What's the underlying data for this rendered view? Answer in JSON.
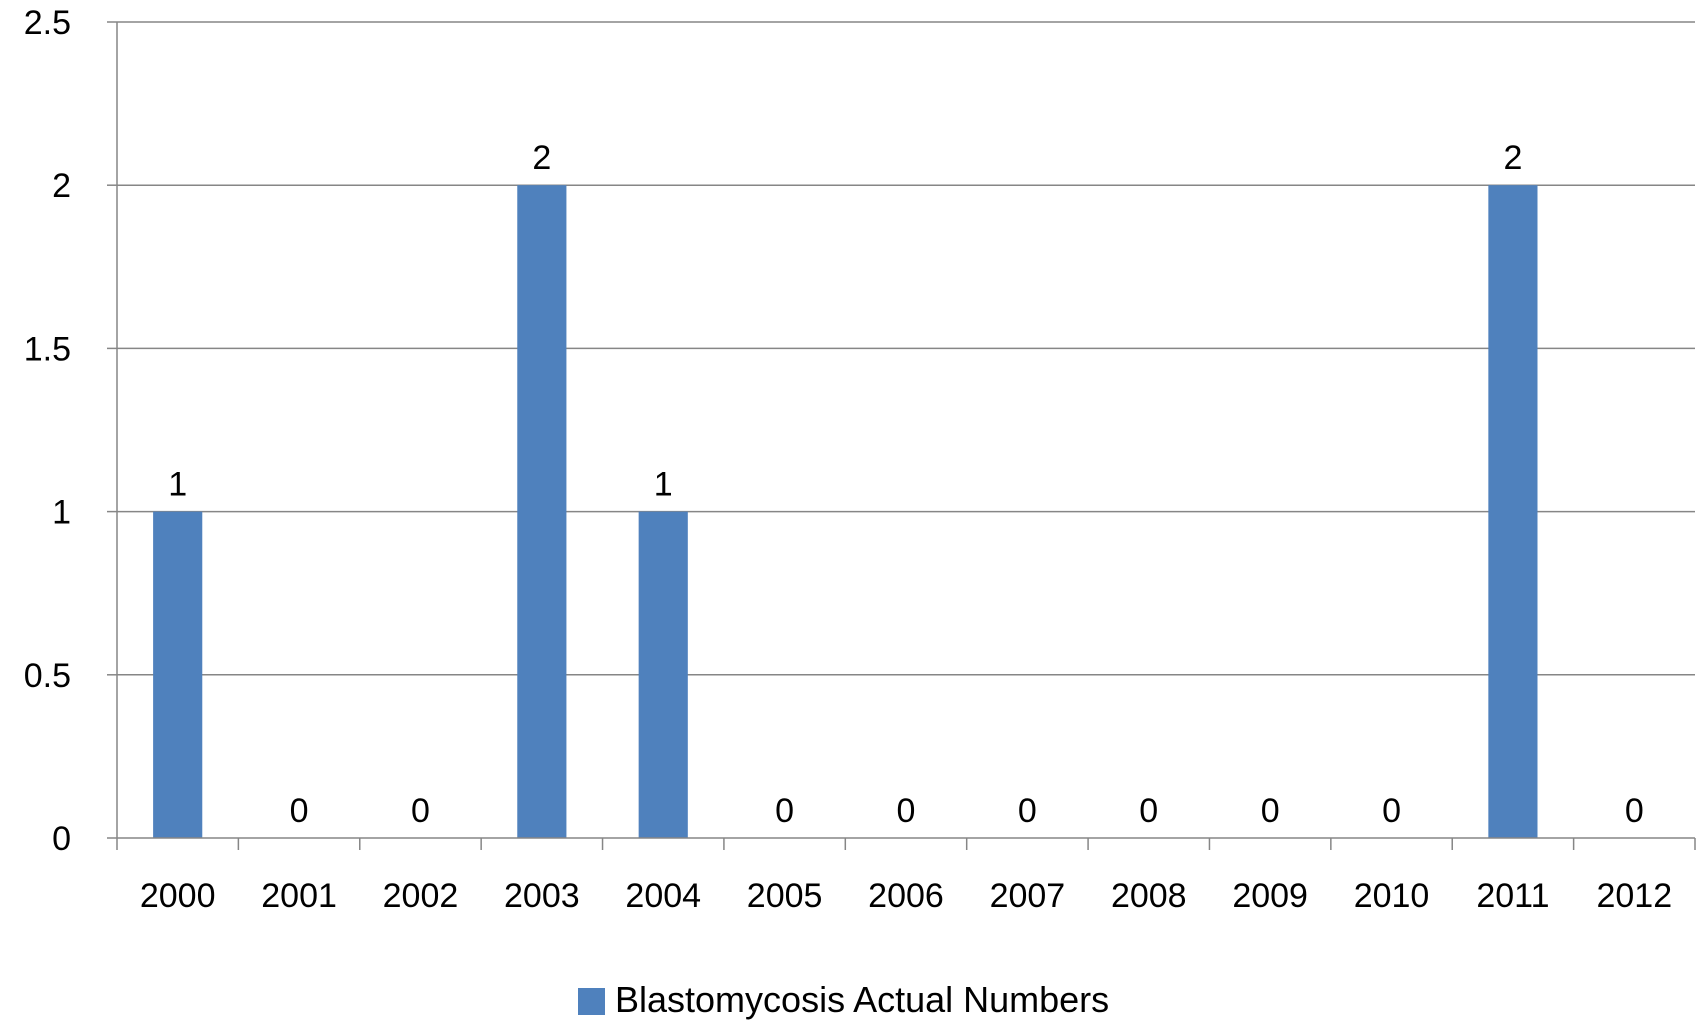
{
  "chart_data": {
    "type": "bar",
    "title": "",
    "xlabel": "",
    "ylabel": "",
    "categories": [
      "2000",
      "2001",
      "2002",
      "2003",
      "2004",
      "2005",
      "2006",
      "2007",
      "2008",
      "2009",
      "2010",
      "2011",
      "2012"
    ],
    "series": [
      {
        "name": "Blastomycosis Actual Numbers",
        "values": [
          1,
          0,
          0,
          2,
          1,
          0,
          0,
          0,
          0,
          0,
          0,
          2,
          0
        ],
        "color": "#4F81BD"
      }
    ],
    "data_labels": [
      "1",
      "0",
      "0",
      "2",
      "1",
      "0",
      "0",
      "0",
      "0",
      "0",
      "0",
      "2",
      "0"
    ],
    "ylim": [
      0,
      2.5
    ],
    "yticks": [
      0,
      0.5,
      1,
      1.5,
      2,
      2.5
    ],
    "ytick_labels": [
      "0",
      "0.5",
      "1",
      "1.5",
      "2",
      "2.5"
    ],
    "grid": true,
    "legend_position": "bottom",
    "colors": {
      "bar": "#4F81BD",
      "grid": "#868686",
      "axis": "#868686"
    }
  }
}
